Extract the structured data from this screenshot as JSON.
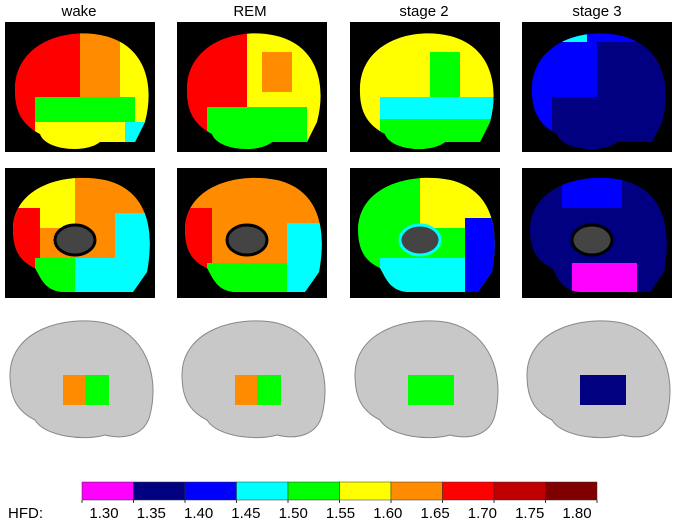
{
  "columns": [
    "wake",
    "REM",
    "stage 2",
    "stage 3"
  ],
  "colorbar": {
    "label": "HFD:",
    "colors": [
      "#ff00ff",
      "#000080",
      "#0000ff",
      "#00ffff",
      "#00ff00",
      "#ffff00",
      "#ff8c00",
      "#ff0000",
      "#c00000",
      "#800000"
    ],
    "ticks": [
      {
        "value": 1.3,
        "label": "1.30"
      },
      {
        "value": 1.35,
        "label": "1.35"
      },
      {
        "value": 1.4,
        "label": "1.40"
      },
      {
        "value": 1.45,
        "label": "1.45"
      },
      {
        "value": 1.5,
        "label": "1.50"
      },
      {
        "value": 1.55,
        "label": "1.55"
      },
      {
        "value": 1.6,
        "label": "1.60"
      },
      {
        "value": 1.65,
        "label": "1.65"
      },
      {
        "value": 1.7,
        "label": "1.70"
      },
      {
        "value": 1.75,
        "label": "1.75"
      },
      {
        "value": 1.8,
        "label": "1.80"
      }
    ]
  }
}
